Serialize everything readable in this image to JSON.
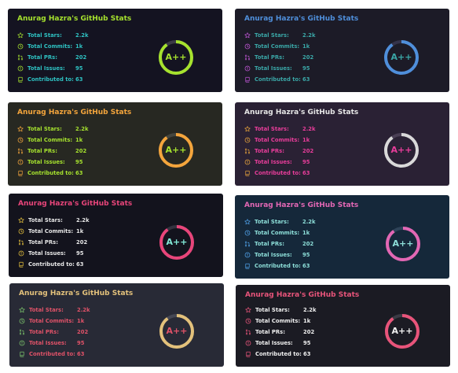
{
  "cards": [
    {
      "title": "Anurag Hazra's GitHub Stats",
      "rank": "A++",
      "rank_progress": 0.9,
      "colors": {
        "bg": "#141321",
        "title": "#a6e22e",
        "label": "#2ec1c2",
        "value": "#2ec1c2",
        "icon": "#a6e22e",
        "ring": "#a6e22e",
        "track": "#3b3a45",
        "rank_text": "#a6e22e"
      },
      "stats": [
        {
          "icon": "star-icon",
          "label": "Total Stars:",
          "value": "2.2k"
        },
        {
          "icon": "history-icon",
          "label": "Total Commits:",
          "value": "1k"
        },
        {
          "icon": "pull-request-icon",
          "label": "Total PRs:",
          "value": "202"
        },
        {
          "icon": "issue-icon",
          "label": "Total Issues:",
          "value": "95"
        },
        {
          "icon": "repo-icon",
          "label": "Contributed to:",
          "value": "63"
        }
      ]
    },
    {
      "title": "Anurag Hazra's GitHub Stats",
      "rank": "A++",
      "rank_progress": 0.9,
      "colors": {
        "bg": "#1c1b27",
        "title": "#4f8fdb",
        "label": "#3aa6a6",
        "value": "#3aa6a6",
        "icon": "#c056d6",
        "ring": "#4f8fdb",
        "track": "#34334a",
        "rank_text": "#3aa6a6"
      },
      "stats": [
        {
          "icon": "star-icon",
          "label": "Total Stars:",
          "value": "2.2k"
        },
        {
          "icon": "history-icon",
          "label": "Total Commits:",
          "value": "1k"
        },
        {
          "icon": "pull-request-icon",
          "label": "Total PRs:",
          "value": "202"
        },
        {
          "icon": "issue-icon",
          "label": "Total Issues:",
          "value": "95"
        },
        {
          "icon": "repo-icon",
          "label": "Contributed to:",
          "value": "63"
        }
      ]
    },
    {
      "title": "Anurag Hazra's GitHub Stats",
      "rank": "A++",
      "rank_progress": 0.9,
      "colors": {
        "bg": "#272822",
        "title": "#f4a53c",
        "label": "#a6e22e",
        "value": "#a6e22e",
        "icon": "#f4a53c",
        "ring": "#f4a53c",
        "track": "#45463f",
        "rank_text": "#a6e22e"
      },
      "stats": [
        {
          "icon": "star-icon",
          "label": "Total Stars:",
          "value": "2.2k"
        },
        {
          "icon": "history-icon",
          "label": "Total Commits:",
          "value": "1k"
        },
        {
          "icon": "pull-request-icon",
          "label": "Total PRs:",
          "value": "202"
        },
        {
          "icon": "issue-icon",
          "label": "Total Issues:",
          "value": "95"
        },
        {
          "icon": "repo-icon",
          "label": "Contributed to:",
          "value": "63"
        }
      ]
    },
    {
      "title": "Anurag Hazra's GitHub Stats",
      "rank": "A++",
      "rank_progress": 0.9,
      "colors": {
        "bg": "#2a2134",
        "title": "#e6e6e6",
        "label": "#e83d9a",
        "value": "#e83d9a",
        "icon": "#e6a23c",
        "ring": "#d9d9d9",
        "track": "#4a3f55",
        "rank_text": "#e83d9a"
      },
      "stats": [
        {
          "icon": "star-icon",
          "label": "Total Stars:",
          "value": "2.2k"
        },
        {
          "icon": "history-icon",
          "label": "Total Commits:",
          "value": "1k"
        },
        {
          "icon": "pull-request-icon",
          "label": "Total PRs:",
          "value": "202"
        },
        {
          "icon": "issue-icon",
          "label": "Total Issues:",
          "value": "95"
        },
        {
          "icon": "repo-icon",
          "label": "Contributed to:",
          "value": "63"
        }
      ]
    },
    {
      "title": "Anurag Hazra's GitHub Stats",
      "rank": "A++",
      "rank_progress": 0.9,
      "colors": {
        "bg": "#13131d",
        "title": "#e8457a",
        "label": "#e6e6e6",
        "value": "#e6e6e6",
        "icon": "#e6c13c",
        "ring": "#e8457a",
        "track": "#33333f",
        "rank_text": "#82e9d7"
      },
      "stats": [
        {
          "icon": "star-icon",
          "label": "Total Stars:",
          "value": "2.2k"
        },
        {
          "icon": "history-icon",
          "label": "Total Commits:",
          "value": "1k"
        },
        {
          "icon": "pull-request-icon",
          "label": "Total PRs:",
          "value": "202"
        },
        {
          "icon": "issue-icon",
          "label": "Total Issues:",
          "value": "95"
        },
        {
          "icon": "repo-icon",
          "label": "Contributed to:",
          "value": "63"
        }
      ]
    },
    {
      "title": "Anurag Hazra's GitHub Stats",
      "rank": "A++",
      "rank_progress": 0.9,
      "colors": {
        "bg": "#15283a",
        "title": "#e267b4",
        "label": "#8ddfd9",
        "value": "#8ddfd9",
        "icon": "#4fa1e8",
        "ring": "#e267b4",
        "track": "#2e4358",
        "rank_text": "#8ddfd9"
      },
      "stats": [
        {
          "icon": "star-icon",
          "label": "Total Stars:",
          "value": "2.2k"
        },
        {
          "icon": "history-icon",
          "label": "Total Commits:",
          "value": "1k"
        },
        {
          "icon": "pull-request-icon",
          "label": "Total PRs:",
          "value": "202"
        },
        {
          "icon": "issue-icon",
          "label": "Total Issues:",
          "value": "95"
        },
        {
          "icon": "repo-icon",
          "label": "Contributed to:",
          "value": "63"
        }
      ]
    },
    {
      "title": "Anurag Hazra's GitHub Stats",
      "rank": "A++",
      "rank_progress": 0.9,
      "colors": {
        "bg": "#282a36",
        "title": "#e3c17b",
        "label": "#e05268",
        "value": "#e05268",
        "icon": "#7bc36b",
        "ring": "#e3c17b",
        "track": "#454754",
        "rank_text": "#e05268"
      },
      "stats": [
        {
          "icon": "star-icon",
          "label": "Total Stars:",
          "value": "2.2k"
        },
        {
          "icon": "history-icon",
          "label": "Total Commits:",
          "value": "1k"
        },
        {
          "icon": "pull-request-icon",
          "label": "Total PRs:",
          "value": "202"
        },
        {
          "icon": "issue-icon",
          "label": "Total Issues:",
          "value": "95"
        },
        {
          "icon": "repo-icon",
          "label": "Contributed to:",
          "value": "63"
        }
      ]
    },
    {
      "title": "Anurag Hazra's GitHub Stats",
      "rank": "A++",
      "rank_progress": 0.9,
      "colors": {
        "bg": "#1b1b23",
        "title": "#e8547a",
        "label": "#f0f0f0",
        "value": "#f0f0f0",
        "icon": "#e8547a",
        "ring": "#e8547a",
        "track": "#3a3a44",
        "rank_text": "#f0f0f0"
      },
      "stats": [
        {
          "icon": "star-icon",
          "label": "Total Stars:",
          "value": "2.2k"
        },
        {
          "icon": "history-icon",
          "label": "Total Commits:",
          "value": "1k"
        },
        {
          "icon": "pull-request-icon",
          "label": "Total PRs:",
          "value": "202"
        },
        {
          "icon": "issue-icon",
          "label": "Total Issues:",
          "value": "95"
        },
        {
          "icon": "repo-icon",
          "label": "Contributed to:",
          "value": "63"
        }
      ]
    }
  ]
}
